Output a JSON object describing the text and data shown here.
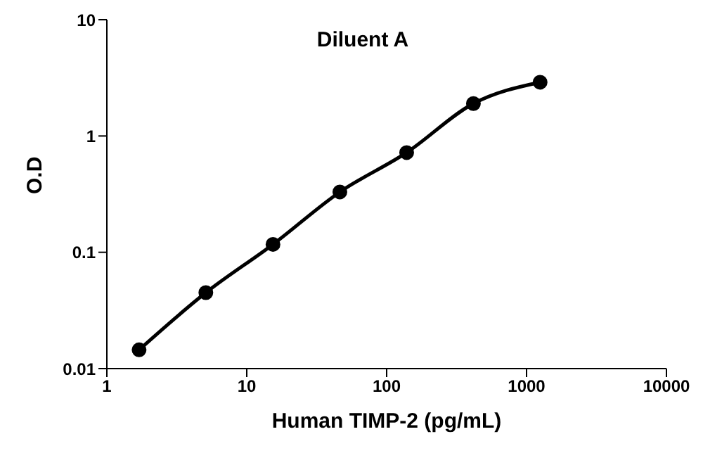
{
  "chart_data": {
    "type": "line",
    "title": "Diluent A",
    "xlabel": "Human TIMP-2 (pg/mL)",
    "ylabel": "O.D",
    "x": [
      1.7,
      5.1,
      15.4,
      46.3,
      139,
      417,
      1250
    ],
    "series": [
      {
        "color": "#000000",
        "values": [
          0.0145,
          0.045,
          0.117,
          0.33,
          0.72,
          1.9,
          2.9
        ]
      }
    ],
    "xlim": [
      1,
      10000
    ],
    "xticks": [
      1,
      10,
      100,
      1000,
      10000
    ],
    "ylim": [
      0.01,
      10
    ],
    "yticks": [
      0.01,
      0.1,
      1,
      10
    ],
    "log": "xy",
    "marker": "circle",
    "line_style": "solid"
  }
}
